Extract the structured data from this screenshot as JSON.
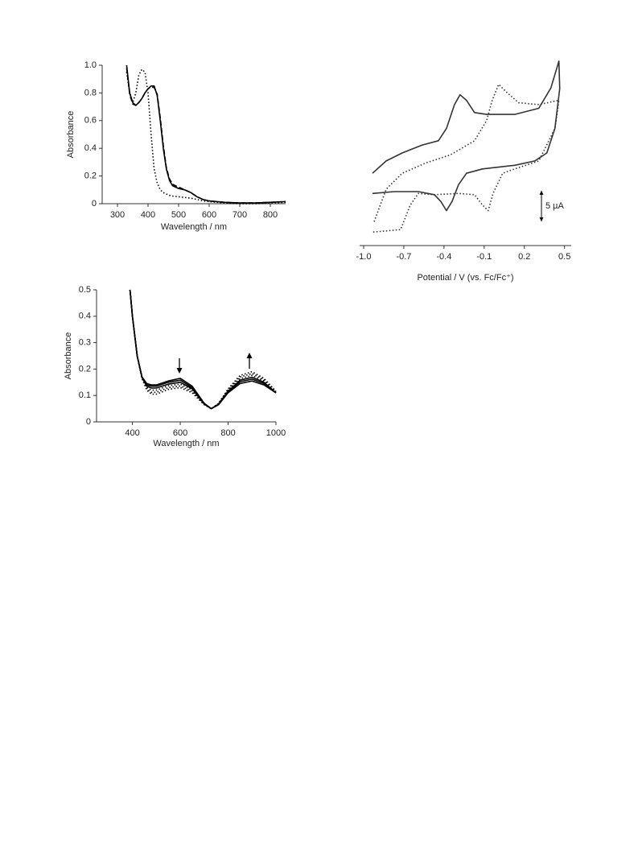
{
  "chart_data": [
    {
      "type": "line",
      "x_label": "Wavelength / nm",
      "y_label": "Absorbance",
      "x": [
        330,
        340,
        350,
        360,
        370,
        380,
        390,
        400,
        410,
        420,
        430,
        440,
        450,
        460,
        470,
        480,
        500,
        520,
        540,
        560,
        580,
        600,
        650,
        700,
        750,
        800,
        850
      ],
      "series": [
        {
          "color": "#000000",
          "dash": "solid",
          "values": [
            1.0,
            0.8,
            0.73,
            0.71,
            0.73,
            0.76,
            0.8,
            0.83,
            0.85,
            0.85,
            0.78,
            0.6,
            0.4,
            0.25,
            0.17,
            0.13,
            0.11,
            0.1,
            0.08,
            0.05,
            0.03,
            0.02,
            0.01,
            0.005,
            0.005,
            0.01,
            0.015
          ]
        },
        {
          "color": "#000000",
          "dash": "dashed",
          "values": [
            0.98,
            0.79,
            0.72,
            0.71,
            0.73,
            0.76,
            0.8,
            0.83,
            0.84,
            0.84,
            0.79,
            0.62,
            0.42,
            0.26,
            0.18,
            0.14,
            0.12,
            0.1,
            0.08,
            0.05,
            0.03,
            0.02,
            0.01,
            0.005,
            0.005,
            0.01,
            0.015
          ]
        },
        {
          "color": "#000000",
          "dash": "dotted",
          "values": [
            0.95,
            0.8,
            0.73,
            0.8,
            0.93,
            0.97,
            0.95,
            0.8,
            0.5,
            0.25,
            0.15,
            0.1,
            0.08,
            0.07,
            0.06,
            0.055,
            0.05,
            0.045,
            0.04,
            0.03,
            0.02,
            0.015,
            0.005,
            0,
            0,
            0.005,
            0.01
          ]
        }
      ],
      "xlim": [
        250,
        850
      ],
      "xticks": [
        300,
        400,
        500,
        600,
        700,
        800
      ],
      "ylim": [
        0,
        1
      ],
      "yticks": [
        0,
        0.2,
        0.4,
        0.6,
        0.8,
        {
          "value": 1,
          "label": "1.0"
        }
      ]
    },
    {
      "type": "line",
      "x_label": "Potential / V (vs. Fc/Fc⁺)",
      "series": [
        {
          "color": "#333333",
          "dash": "solid",
          "x": [
            -0.934,
            -0.832,
            -0.712,
            -0.562,
            -0.442,
            -0.382,
            -0.322,
            -0.28,
            -0.232,
            -0.172,
            -0.082,
            0.128,
            0.308,
            0.398,
            0.458,
            0.464,
            0.428,
            0.368,
            0.278,
            0.128,
            -0.112,
            -0.232,
            -0.292,
            -0.34,
            -0.382,
            -0.424,
            -0.472,
            -0.592,
            -0.772,
            -0.934
          ],
          "values": [
            11.8,
            13.8,
            15.1,
            16.4,
            17.1,
            19.1,
            23.0,
            24.6,
            23.7,
            21.7,
            21.4,
            21.4,
            22.4,
            25.7,
            30.1,
            25.6,
            19.1,
            15.1,
            13.8,
            13.1,
            12.5,
            11.8,
            9.9,
            7.2,
            5.7,
            7.2,
            8.3,
            8.8,
            8.8,
            8.5
          ]
        },
        {
          "color": "#333333",
          "dash": "dotted",
          "x": [
            -0.922,
            -0.832,
            -0.712,
            -0.532,
            -0.352,
            -0.172,
            -0.082,
            -0.04,
            0.008,
            0.068,
            0.158,
            0.308,
            0.458,
            0.428,
            0.308,
            0.128,
            0.038,
            -0.034,
            -0.07,
            -0.112,
            -0.172,
            -0.292,
            -0.472,
            -0.592,
            -0.652,
            -0.724,
            -0.934
          ],
          "values": [
            3.9,
            9.2,
            11.8,
            13.5,
            14.8,
            17.1,
            20.4,
            23.7,
            26.3,
            25.0,
            23.3,
            23.0,
            23.7,
            19.1,
            13.8,
            12.5,
            11.8,
            8.5,
            5.7,
            6.6,
            8.3,
            8.5,
            8.3,
            8.5,
            6.6,
            2.6,
            2.2
          ]
        }
      ],
      "xlim": [
        -1.03,
        0.55
      ],
      "xticks": [
        {
          "value": -1,
          "label": "-1.0"
        },
        -0.7,
        -0.4,
        -0.1,
        0.2,
        0.5
      ],
      "ylim": [
        0,
        31
      ],
      "scale_bar": {
        "value": 5,
        "label": "5 µA"
      }
    },
    {
      "type": "line",
      "x_label": "Wavelength / nm",
      "y_label": "Absorbance",
      "x": [
        390,
        400,
        420,
        440,
        460,
        480,
        500,
        550,
        600,
        650,
        700,
        730,
        760,
        800,
        850,
        900,
        950,
        1000
      ],
      "series": [
        {
          "color": "#000000",
          "dash": "solid",
          "values": [
            0.5,
            0.4,
            0.25,
            0.17,
            0.145,
            0.14,
            0.14,
            0.155,
            0.165,
            0.135,
            0.07,
            0.05,
            0.065,
            0.11,
            0.145,
            0.155,
            0.14,
            0.11
          ]
        },
        {
          "color": "#000000",
          "dash": "solid",
          "values": [
            0.5,
            0.4,
            0.25,
            0.17,
            0.14,
            0.135,
            0.135,
            0.15,
            0.158,
            0.13,
            0.07,
            0.05,
            0.066,
            0.113,
            0.152,
            0.162,
            0.145,
            0.11
          ]
        },
        {
          "color": "#000000",
          "dash": "solid",
          "values": [
            0.5,
            0.4,
            0.25,
            0.168,
            0.135,
            0.128,
            0.128,
            0.143,
            0.15,
            0.125,
            0.068,
            0.05,
            0.067,
            0.116,
            0.158,
            0.169,
            0.15,
            0.11
          ]
        },
        {
          "color": "#000000",
          "dash": "dotted",
          "values": [
            0.5,
            0.4,
            0.25,
            0.167,
            0.13,
            0.12,
            0.12,
            0.137,
            0.143,
            0.12,
            0.067,
            0.05,
            0.068,
            0.119,
            0.164,
            0.176,
            0.155,
            0.112
          ]
        },
        {
          "color": "#000000",
          "dash": "dotted",
          "values": [
            0.5,
            0.4,
            0.25,
            0.165,
            0.125,
            0.112,
            0.112,
            0.13,
            0.136,
            0.115,
            0.066,
            0.05,
            0.069,
            0.122,
            0.17,
            0.183,
            0.16,
            0.114
          ]
        },
        {
          "color": "#000000",
          "dash": "dotted",
          "values": [
            0.5,
            0.4,
            0.25,
            0.164,
            0.12,
            0.105,
            0.105,
            0.123,
            0.13,
            0.11,
            0.065,
            0.05,
            0.07,
            0.125,
            0.176,
            0.19,
            0.165,
            0.116
          ]
        }
      ],
      "xlim": [
        250,
        1000
      ],
      "xticks": [
        400,
        600,
        800,
        1000
      ],
      "ylim": [
        0,
        0.5
      ],
      "yticks": [
        0,
        0.1,
        0.2,
        0.3,
        0.4,
        0.5
      ]
    }
  ]
}
